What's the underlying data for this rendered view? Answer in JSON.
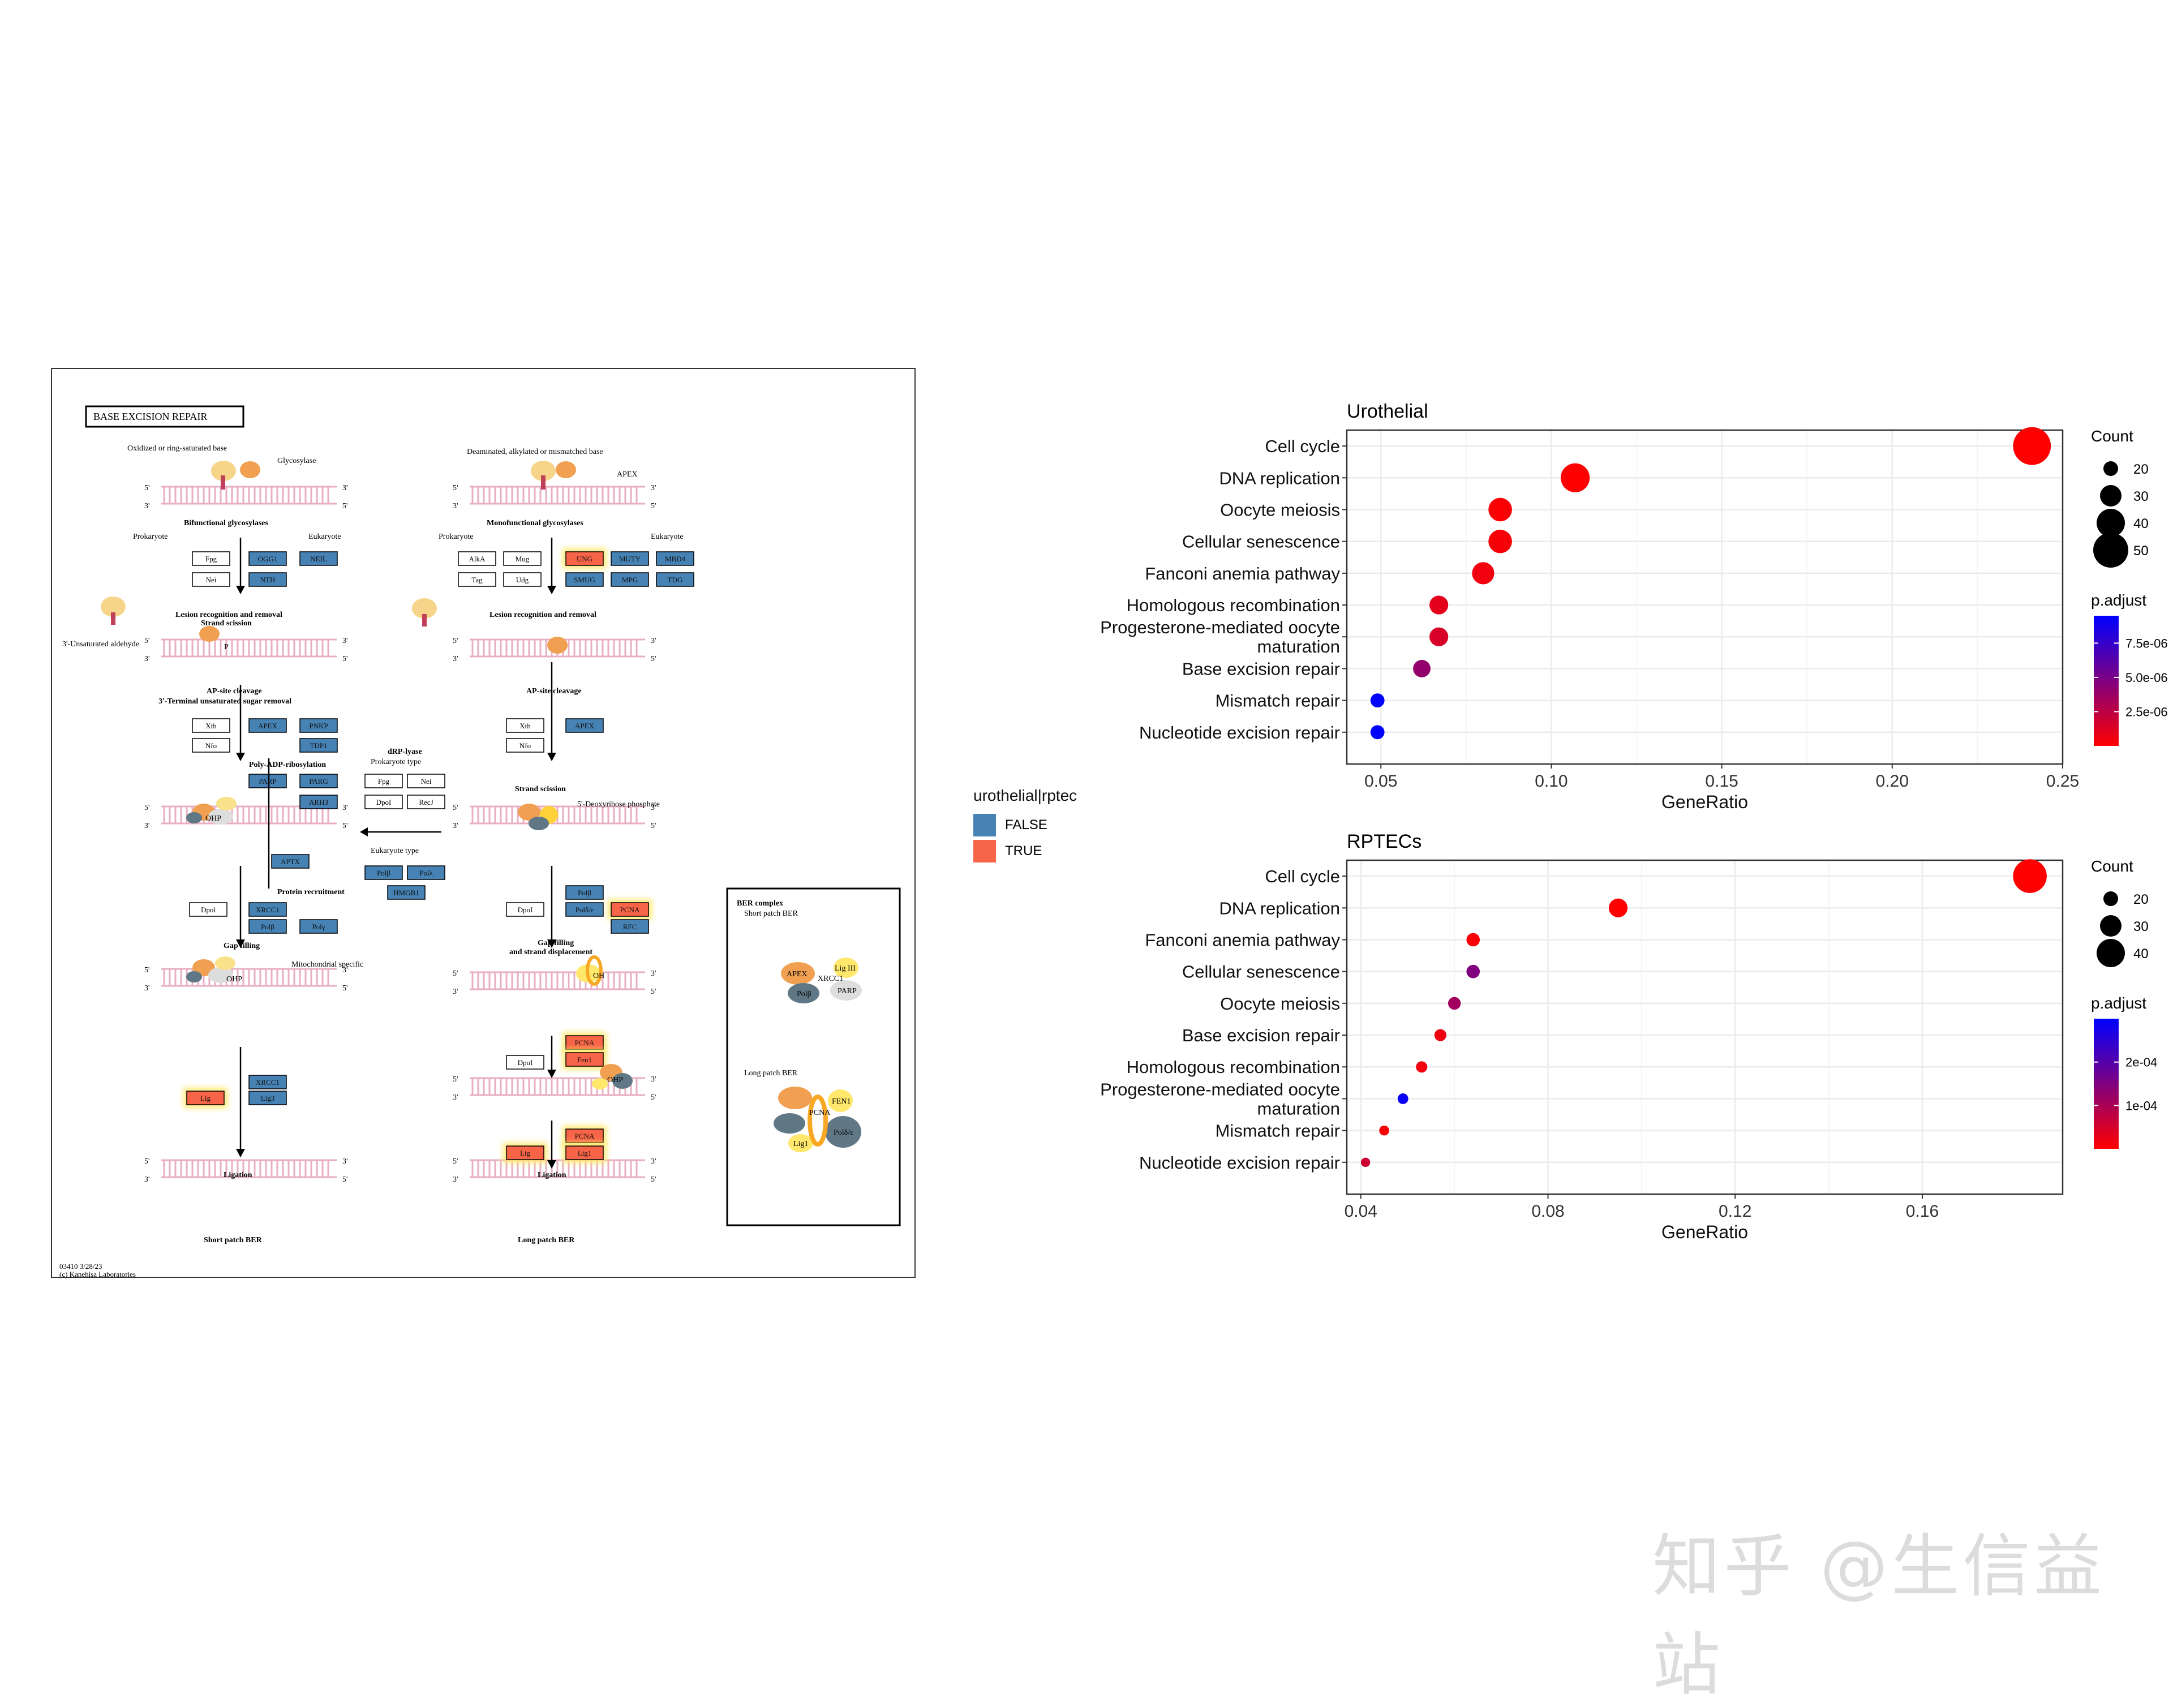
{
  "kegg": {
    "title": "BASE  EXCISION  REPAIR",
    "footer_id": "03410 3/28/23",
    "footer_copy": "(c) Kanehisa Laboratories",
    "colors": {
      "false_fill": "#4682B4",
      "true_fill": "#F86448",
      "glow": "#FFE86B",
      "dna": "#E8AEC2"
    },
    "left": {
      "substrate": "Oxidized or ring-saturated base",
      "enzyme": "Glycosylase",
      "step1": "Bifunctional glycosylases",
      "prok": "Prokaryote",
      "euk": "Eukaryote",
      "step2a": "Lesion recognition and removal",
      "step2b": "Strand scission",
      "aldehyde": "3'-Unsaturated aldehyde",
      "step3a": "AP-site cleavage",
      "step3b": "3'-Terminal unsaturated sugar removal",
      "step4": "Poly-ADP-ribosylation",
      "step5": "Protein recruitment",
      "step6": "Gap filling",
      "mito": "Mitochondrial specific",
      "step7": "Ligation",
      "bottom": "Short patch BER",
      "ohp": "OHP",
      "p": "P"
    },
    "middle": {
      "title": "dRP-lyase",
      "prok": "Prokaryote type",
      "euk": "Eukaryote type"
    },
    "right": {
      "substrate": "Deaminated, alkylated or mismatched base",
      "enzyme": "APEX",
      "step1": "Monofunctional glycosylases",
      "prok": "Prokaryote",
      "euk": "Eukaryote",
      "step2": "Lesion recognition and removal",
      "step3": "AP-site cleavage",
      "step4": "Strand scission",
      "drp": "5'-Deoxyribose phosphate",
      "step5a": "Gap filling",
      "step5b": "and strand displacement",
      "step6": "Ligation",
      "bottom": "Long patch BER",
      "oh": "OH",
      "ohp": "OHP"
    },
    "complex": {
      "title": "BER complex",
      "short": "Short patch BER",
      "long": "Long patch BER",
      "labels": [
        "APEX",
        "XRCC1",
        "Lig III",
        "Polβ",
        "PARP",
        "FEN1",
        "PCNA",
        "Polδ/ε",
        "Lig1"
      ]
    },
    "genes": [
      {
        "t": "Fpg",
        "s": "n"
      },
      {
        "t": "Nei",
        "s": "n"
      },
      {
        "t": "OGG1",
        "s": "f"
      },
      {
        "t": "NTH",
        "s": "f"
      },
      {
        "t": "NEIL",
        "s": "f"
      },
      {
        "t": "Xth",
        "s": "n"
      },
      {
        "t": "Nfo",
        "s": "n"
      },
      {
        "t": "APEX",
        "s": "f"
      },
      {
        "t": "PNKP",
        "s": "f"
      },
      {
        "t": "TDP1",
        "s": "f"
      },
      {
        "t": "PARP",
        "s": "f"
      },
      {
        "t": "PARG",
        "s": "f"
      },
      {
        "t": "ARH3",
        "s": "f"
      },
      {
        "t": "APTX",
        "s": "f"
      },
      {
        "t": "Dpol",
        "s": "n"
      },
      {
        "t": "XRCC1",
        "s": "f"
      },
      {
        "t": "Polβ",
        "s": "f"
      },
      {
        "t": "Polγ",
        "s": "f"
      },
      {
        "t": "Lig",
        "s": "t"
      },
      {
        "t": "XRCC1",
        "s": "f"
      },
      {
        "t": "Lig3",
        "s": "f"
      },
      {
        "t": "Fpg",
        "s": "n"
      },
      {
        "t": "Nei",
        "s": "n"
      },
      {
        "t": "DpoI",
        "s": "n"
      },
      {
        "t": "RecJ",
        "s": "n"
      },
      {
        "t": "Polβ",
        "s": "f"
      },
      {
        "t": "Polλ",
        "s": "f"
      },
      {
        "t": "HMGB1",
        "s": "f"
      },
      {
        "t": "AlkA",
        "s": "n"
      },
      {
        "t": "Mug",
        "s": "n"
      },
      {
        "t": "Tag",
        "s": "n"
      },
      {
        "t": "Udg",
        "s": "n"
      },
      {
        "t": "UNG",
        "s": "t"
      },
      {
        "t": "MUTY",
        "s": "f"
      },
      {
        "t": "MBD4",
        "s": "f"
      },
      {
        "t": "SMUG",
        "s": "f"
      },
      {
        "t": "MPG",
        "s": "f"
      },
      {
        "t": "TDG",
        "s": "f"
      },
      {
        "t": "Xth",
        "s": "n"
      },
      {
        "t": "Nfo",
        "s": "n"
      },
      {
        "t": "APEX",
        "s": "f"
      },
      {
        "t": "DpoI",
        "s": "n"
      },
      {
        "t": "Polβ",
        "s": "f"
      },
      {
        "t": "Polδ/ε",
        "s": "f"
      },
      {
        "t": "PCNA",
        "s": "t"
      },
      {
        "t": "RFC",
        "s": "f"
      },
      {
        "t": "DpoI",
        "s": "n"
      },
      {
        "t": "PCNA",
        "s": "t"
      },
      {
        "t": "Fen1",
        "s": "t"
      },
      {
        "t": "Lig",
        "s": "t"
      },
      {
        "t": "PCNA",
        "s": "t"
      },
      {
        "t": "Lig1",
        "s": "t"
      },
      {
        "t": "APEX",
        "s": "f"
      },
      {
        "t": "PARP",
        "s": "f"
      },
      {
        "t": "Polβ",
        "s": "f"
      },
      {
        "t": "XRCC1",
        "s": "t"
      },
      {
        "t": "Lig3",
        "s": "f"
      },
      {
        "t": "Polβ",
        "s": "f"
      },
      {
        "t": "APEX",
        "s": "f"
      },
      {
        "t": "Lig1",
        "s": "t"
      },
      {
        "t": "PCNA",
        "s": "t"
      },
      {
        "t": "Fen1",
        "s": "t"
      },
      {
        "t": "Polδ",
        "s": "f"
      },
      {
        "t": "Polε",
        "s": "f"
      }
    ],
    "legend": {
      "title": "urothelial|rptec",
      "items": [
        {
          "label": "FALSE",
          "color": "#4682B4"
        },
        {
          "label": "TRUE",
          "color": "#F86448"
        }
      ]
    }
  },
  "chart_data": [
    {
      "type": "scatter",
      "title": "Urothelial",
      "xlabel": "GeneRatio",
      "ylabel": "",
      "xlim": [
        0.04,
        0.25
      ],
      "xticks": [
        "0.05",
        "0.10",
        "0.15",
        "0.20",
        "0.25"
      ],
      "xtick_values": [
        0.05,
        0.1,
        0.15,
        0.2,
        0.25
      ],
      "grid": true,
      "categories": [
        "Cell cycle",
        "DNA replication",
        "Oocyte meiosis",
        "Cellular senescence",
        "Fanconi anemia pathway",
        "Homologous recombination",
        "Progesterone-mediated oocyte maturation",
        "Base excision repair",
        "Mismatch repair",
        "Nucleotide excision repair"
      ],
      "category_lines": [
        [
          "Cell cycle"
        ],
        [
          "DNA replication"
        ],
        [
          "Oocyte meiosis"
        ],
        [
          "Cellular senescence"
        ],
        [
          "Fanconi anemia pathway"
        ],
        [
          "Homologous recombination"
        ],
        [
          "Progesterone-mediated oocyte",
          "maturation"
        ],
        [
          "Base excision repair"
        ],
        [
          "Mismatch repair"
        ],
        [
          "Nucleotide excision repair"
        ]
      ],
      "x": [
        0.241,
        0.107,
        0.085,
        0.085,
        0.08,
        0.067,
        0.067,
        0.062,
        0.049,
        0.049
      ],
      "count": [
        54,
        41,
        33,
        33,
        31,
        26,
        26,
        24,
        19,
        19
      ],
      "p_adjust": [
        1e-12,
        5e-10,
        2e-07,
        3e-07,
        5e-07,
        1e-06,
        1.5e-06,
        4e-06,
        6e-05,
        0.0093
      ],
      "size_legend": {
        "title": "Count",
        "values": [
          20,
          30,
          40,
          50
        ]
      },
      "color_legend": {
        "title": "p.adjust",
        "ticks": [
          "7.5e-06",
          "5.0e-06",
          "2.5e-06"
        ],
        "tick_values": [
          7.5e-06,
          5e-06,
          2.5e-06
        ],
        "range": [
          0,
          9.5e-06
        ],
        "low": "#FF0000",
        "high": "#0000FF"
      }
    },
    {
      "type": "scatter",
      "title": "RPTECs",
      "xlabel": "GeneRatio",
      "ylabel": "",
      "xlim": [
        0.037,
        0.19
      ],
      "xticks": [
        "0.04",
        "0.08",
        "0.12",
        "0.16"
      ],
      "xtick_values": [
        0.04,
        0.08,
        0.12,
        0.16
      ],
      "grid": true,
      "categories": [
        "Cell cycle",
        "DNA replication",
        "Fanconi anemia pathway",
        "Cellular senescence",
        "Oocyte meiosis",
        "Base excision repair",
        "Homologous recombination",
        "Progesterone-mediated oocyte maturation",
        "Mismatch repair",
        "Nucleotide excision repair"
      ],
      "category_lines": [
        [
          "Cell cycle"
        ],
        [
          "DNA replication"
        ],
        [
          "Fanconi anemia pathway"
        ],
        [
          "Cellular senescence"
        ],
        [
          "Oocyte meiosis"
        ],
        [
          "Base excision repair"
        ],
        [
          "Homologous recombination"
        ],
        [
          "Progesterone-mediated oocyte",
          "maturation"
        ],
        [
          "Mismatch repair"
        ],
        [
          "Nucleotide excision repair"
        ]
      ],
      "x": [
        0.183,
        0.095,
        0.064,
        0.064,
        0.06,
        0.057,
        0.053,
        0.049,
        0.045,
        0.041
      ],
      "count": [
        48,
        26,
        18,
        18,
        17,
        16,
        15,
        14,
        13,
        12
      ],
      "p_adjust": [
        1e-10,
        2e-07,
        5e-06,
        0.00015,
        0.00011,
        2e-05,
        1.5e-05,
        0.00029,
        6e-06,
        6e-05
      ],
      "size_legend": {
        "title": "Count",
        "values": [
          20,
          30,
          40
        ]
      },
      "color_legend": {
        "title": "p.adjust",
        "ticks": [
          "2e-04",
          "1e-04"
        ],
        "tick_values": [
          0.0002,
          0.0001
        ],
        "range": [
          0,
          0.0003
        ],
        "low": "#FF0000",
        "high": "#0000FF"
      }
    }
  ]
}
